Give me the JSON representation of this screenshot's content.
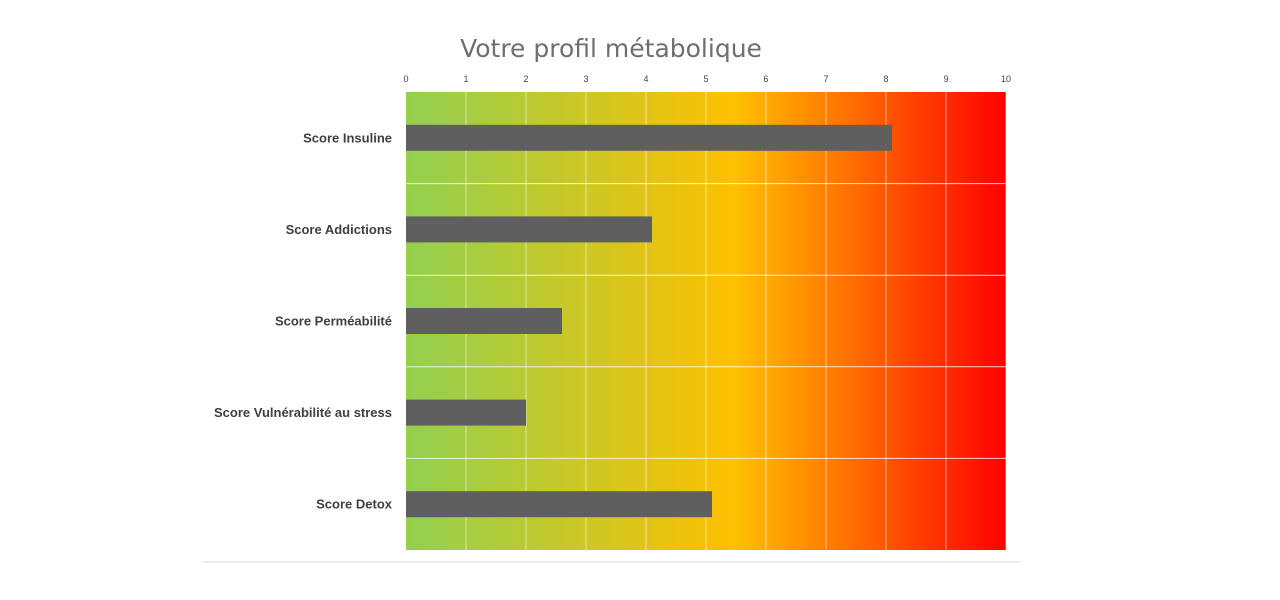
{
  "chart_data": {
    "type": "bar",
    "orientation": "horizontal",
    "title": "Votre profil métabolique",
    "categories": [
      "Score Insuline",
      "Score Addictions",
      "Score Perméabilité",
      "Score Vulnérabilité au stress",
      "Score Detox"
    ],
    "values": [
      8.1,
      4.1,
      2.6,
      2.0,
      5.1
    ],
    "xlim": [
      0,
      10
    ],
    "xticks": [
      "0",
      "1",
      "2",
      "3",
      "4",
      "5",
      "6",
      "7",
      "8",
      "9",
      "10"
    ],
    "xaxis_position": "top",
    "grid": true,
    "legend": "none",
    "bar_color": "#5f5f5f",
    "background_gradient": [
      "#92d050",
      "#ffc000",
      "#ff0000"
    ]
  }
}
